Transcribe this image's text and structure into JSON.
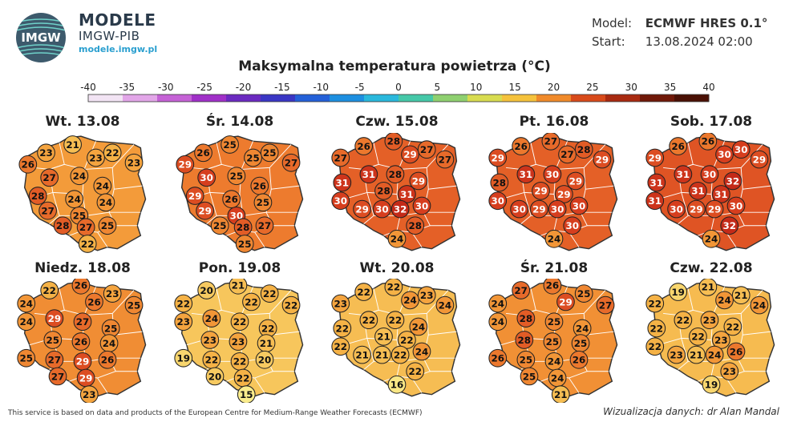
{
  "header": {
    "brand_title": "MODELE",
    "brand_sub": "IMGW-PIB",
    "brand_url": "modele.imgw.pl",
    "logo_text": "IMGW",
    "model_label": "Model:",
    "model_value": "ECMWF HRES 0.1°",
    "start_label": "Start:",
    "start_value": "13.08.2024 02:00",
    "title": "Maksymalna temperatura powietrza (°C)"
  },
  "scale": {
    "ticks": [
      "-40",
      "-35",
      "-30",
      "-25",
      "-20",
      "-15",
      "-10",
      "-5",
      "0",
      "5",
      "10",
      "15",
      "20",
      "25",
      "30",
      "35",
      "40"
    ],
    "colors": [
      "#f2e4f4",
      "#e2a6e8",
      "#c562d6",
      "#a030c8",
      "#6b2ac0",
      "#3a36c4",
      "#2460d8",
      "#1d8fe0",
      "#2ab8dc",
      "#45c8a8",
      "#8fd070",
      "#d8dc50",
      "#f5c23c",
      "#f08a2a",
      "#d84a1a",
      "#a82a10",
      "#701808",
      "#4a1005"
    ]
  },
  "footer": {
    "left": "This service is based on data and products of the European Centre for Medium-Range Weather Forecasts (ECMWF)",
    "right": "Wizualizacja danych: dr Alan Mandal"
  },
  "days": [
    {
      "label": "Wt. 13.08",
      "temps": [
        21,
        23,
        22,
        26,
        23,
        23,
        27,
        24,
        24,
        28,
        24,
        24,
        27,
        25,
        28,
        27,
        25,
        22
      ]
    },
    {
      "label": "Śr. 14.08",
      "temps": [
        25,
        26,
        25,
        29,
        25,
        27,
        30,
        25,
        26,
        29,
        26,
        25,
        29,
        30,
        25,
        28,
        27,
        25
      ]
    },
    {
      "label": "Czw. 15.08",
      "temps": [
        28,
        26,
        27,
        27,
        29,
        27,
        31,
        28,
        29,
        31,
        28,
        31,
        30,
        29,
        30,
        32,
        30,
        28,
        24
      ]
    },
    {
      "label": "Pt. 16.08",
      "temps": [
        27,
        26,
        28,
        29,
        27,
        29,
        31,
        30,
        29,
        28,
        29,
        29,
        30,
        30,
        29,
        30,
        30,
        30,
        24
      ]
    },
    {
      "label": "Sob. 17.08",
      "temps": [
        26,
        26,
        30,
        29,
        30,
        29,
        31,
        30,
        32,
        31,
        31,
        31,
        31,
        30,
        29,
        29,
        30,
        32,
        24
      ]
    },
    {
      "label": "Niedz. 18.08",
      "temps": [
        26,
        22,
        23,
        24,
        26,
        25,
        24,
        29,
        27,
        25,
        25,
        26,
        24,
        25,
        27,
        29,
        26,
        27,
        29,
        23
      ]
    },
    {
      "label": "Pon. 19.08",
      "temps": [
        21,
        20,
        22,
        22,
        22,
        22,
        23,
        24,
        22,
        22,
        23,
        23,
        21,
        19,
        22,
        22,
        20,
        20,
        22,
        15
      ]
    },
    {
      "label": "Wt. 20.08",
      "temps": [
        22,
        22,
        23,
        23,
        24,
        24,
        22,
        22,
        24,
        22,
        21,
        22,
        22,
        21,
        21,
        22,
        24,
        22,
        16
      ]
    },
    {
      "label": "Śr. 21.08",
      "temps": [
        26,
        27,
        25,
        24,
        29,
        27,
        24,
        28,
        25,
        24,
        28,
        25,
        25,
        26,
        25,
        24,
        26,
        25,
        24,
        21
      ]
    },
    {
      "label": "Czw. 22.08",
      "temps": [
        21,
        19,
        21,
        22,
        24,
        24,
        22,
        23,
        22,
        22,
        22,
        23,
        22,
        23,
        21,
        24,
        26,
        23,
        19
      ]
    }
  ]
}
